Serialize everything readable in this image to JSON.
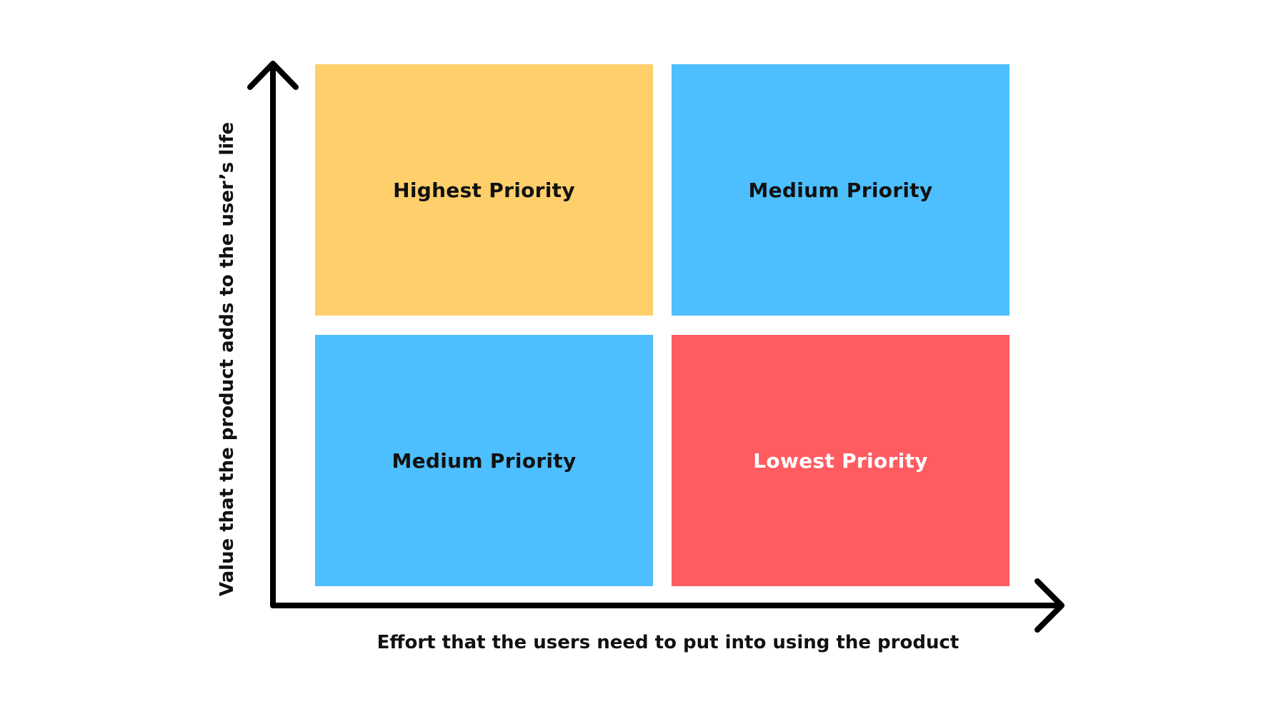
{
  "matrix": {
    "quadrants": {
      "top_left": {
        "label": "Highest Priority",
        "color": "#FECF6A",
        "text_color": "#111111"
      },
      "top_right": {
        "label": "Medium Priority",
        "color": "#4DBFFF",
        "text_color": "#111111"
      },
      "bottom_left": {
        "label": "Medium Priority",
        "color": "#4DBFFF",
        "text_color": "#111111"
      },
      "bottom_right": {
        "label": "Lowest Priority",
        "color": "#FF5C62",
        "text_color": "#ffffff"
      }
    },
    "x_axis_label": "Effort that the users need to put into using the product",
    "y_axis_label": "Value that the product adds to the user’s life",
    "axis_color": "#000000"
  }
}
